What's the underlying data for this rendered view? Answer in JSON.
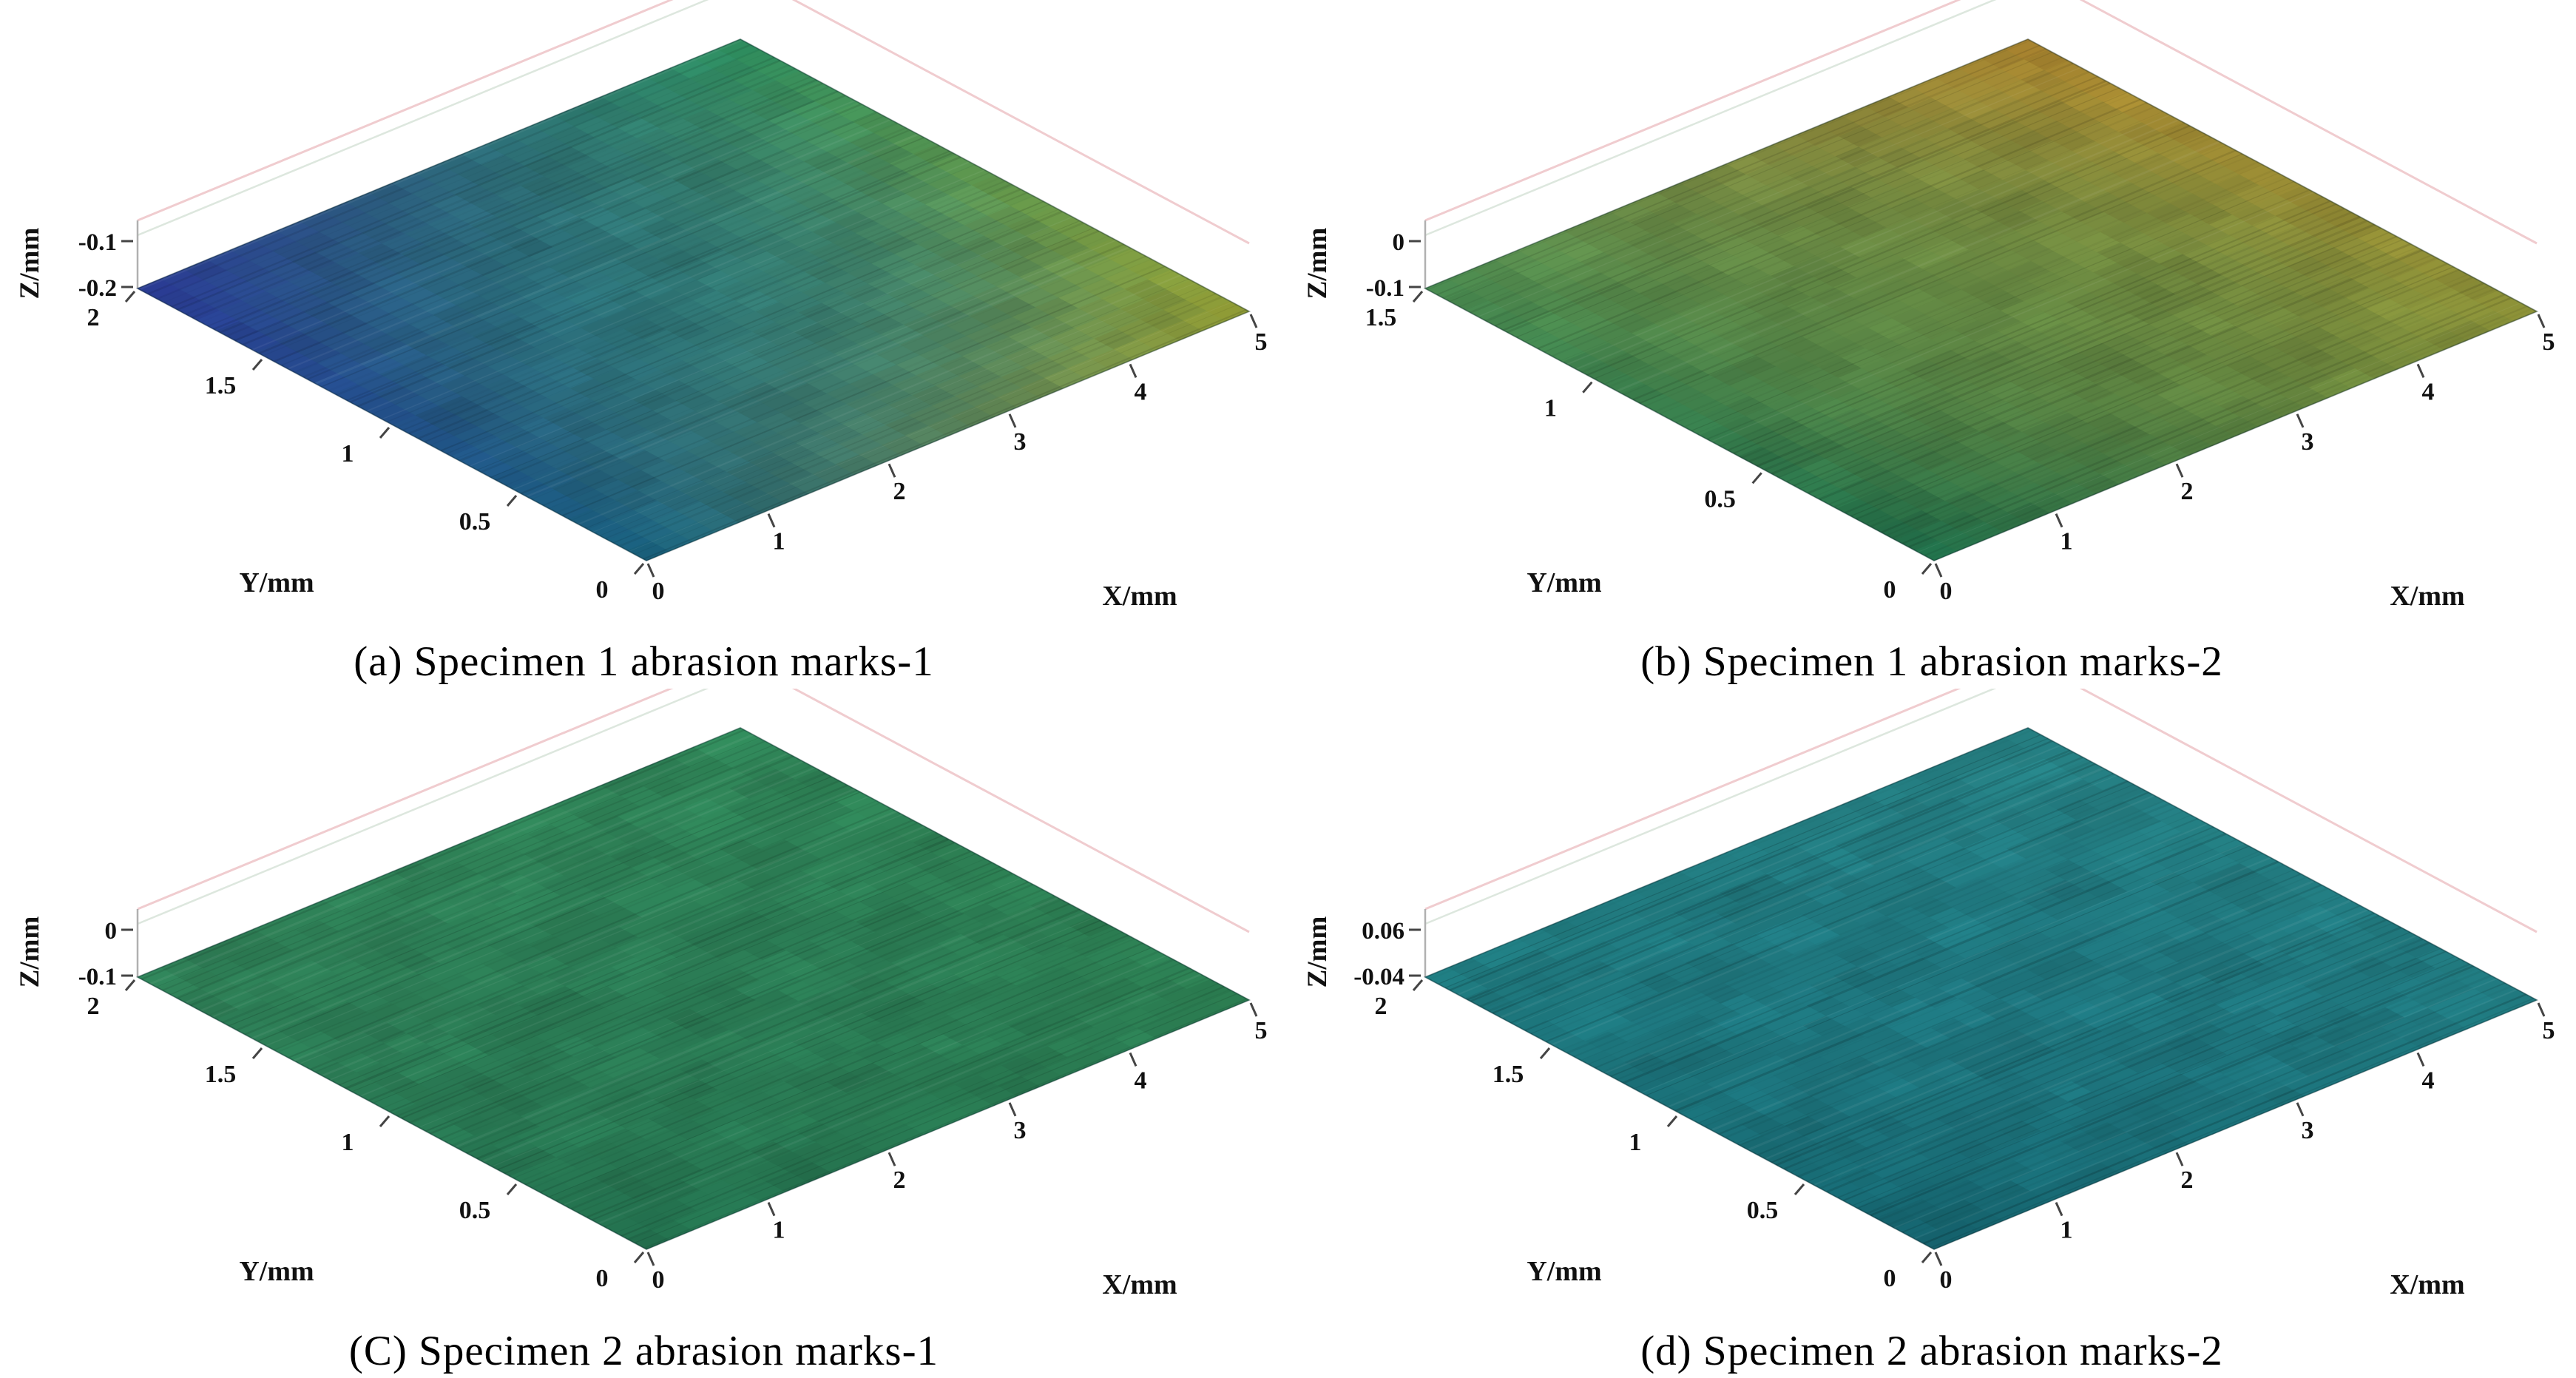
{
  "figure": {
    "background_color": "#ffffff",
    "text_color": "#000000",
    "layout": "2x2 grid of 3D surface plots"
  },
  "chart_data": [
    {
      "type": "surface",
      "panel": "(a)",
      "caption": "(a) Specimen 1 abrasion marks-1",
      "xlabel": "X/mm",
      "ylabel": "Y/mm",
      "zlabel": "Z/mm",
      "x_range": [
        0,
        5
      ],
      "y_range": [
        0,
        2
      ],
      "x_tick_labels": [
        "0",
        "1",
        "2",
        "3",
        "4",
        "5"
      ],
      "y_tick_labels": [
        "0",
        "0.5",
        "1",
        "1.5",
        "2"
      ],
      "z_tick_labels": [
        "-0.1",
        "-0.2"
      ],
      "z_values_at_ticks": [
        -0.1,
        -0.2
      ],
      "surface_summary": "Near-planar rough abraded surface; Z about -0.2 to -0.1 mm; dark blue near X=0,Y=2 grading through teal to yellow-green near X=5",
      "style": {
        "corner_colors": {
          "bottom": "#17617e",
          "right": "#98a135",
          "left": "#2b3a96",
          "top": "#2d9160",
          "center": "#1d7a80"
        },
        "streak_alpha": 0.1
      }
    },
    {
      "type": "surface",
      "panel": "(b)",
      "caption": "(b) Specimen 1 abrasion marks-2",
      "xlabel": "X/mm",
      "ylabel": "Y/mm",
      "zlabel": "Z/mm",
      "x_range": [
        0,
        5
      ],
      "y_range": [
        0,
        1.5
      ],
      "x_tick_labels": [
        "0",
        "1",
        "2",
        "3",
        "4",
        "5"
      ],
      "y_tick_labels": [
        "0",
        "0.5",
        "1",
        "1.5"
      ],
      "z_tick_labels": [
        "0",
        "-0.1"
      ],
      "z_values_at_ticks": [
        0,
        -0.1
      ],
      "surface_summary": "Near-planar rough abraded surface; Z about -0.1 to 0 mm; green near the origin grading to olive and orange-tan toward X=5,Y=1.5",
      "style": {
        "corner_colors": {
          "bottom": "#1e6b48",
          "right": "#8e9338",
          "left": "#4a8d52",
          "top": "#ad862f",
          "center": "#5f8a44"
        },
        "streak_alpha": 0.1
      }
    },
    {
      "type": "surface",
      "panel": "(C)",
      "caption": "(C) Specimen 2 abrasion marks-1",
      "xlabel": "X/mm",
      "ylabel": "Y/mm",
      "zlabel": "Z/mm",
      "x_range": [
        0,
        5
      ],
      "y_range": [
        0,
        2
      ],
      "x_tick_labels": [
        "0",
        "1",
        "2",
        "3",
        "4",
        "5"
      ],
      "y_tick_labels": [
        "0",
        "0.5",
        "1",
        "1.5",
        "2"
      ],
      "z_tick_labels": [
        "0",
        "-0.1"
      ],
      "z_values_at_ticks": [
        0,
        -0.1
      ],
      "surface_summary": "Near-planar rough abraded surface; Z about -0.1 to 0 mm; fairly uniform medium green with slight teal mottling",
      "style": {
        "corner_colors": {
          "bottom": "#23714f",
          "right": "#2c7e52",
          "left": "#2f8057",
          "top": "#2f8457",
          "center": "#2a7a55"
        },
        "streak_alpha": 0.12
      }
    },
    {
      "type": "surface",
      "panel": "(d)",
      "caption": "(d) Specimen 2 abrasion marks-2",
      "xlabel": "X/mm",
      "ylabel": "Y/mm",
      "zlabel": "Z/mm",
      "x_range": [
        0,
        5
      ],
      "y_range": [
        0,
        2
      ],
      "x_tick_labels": [
        "0",
        "1",
        "2",
        "3",
        "4",
        "5"
      ],
      "y_tick_labels": [
        "0",
        "0.5",
        "1",
        "1.5",
        "2"
      ],
      "z_tick_labels": [
        "0.06",
        "-0.04"
      ],
      "z_values_at_ticks": [
        0.06,
        -0.04
      ],
      "surface_summary": "Near-planar rough abraded surface; Z about -0.04 to 0.06 mm; fairly uniform blue-green teal with fine abrasion striations",
      "style": {
        "corner_colors": {
          "bottom": "#156570",
          "right": "#20797f",
          "left": "#1f7a7f",
          "top": "#268083",
          "center": "#1e7680"
        },
        "streak_alpha": 0.14
      }
    }
  ]
}
